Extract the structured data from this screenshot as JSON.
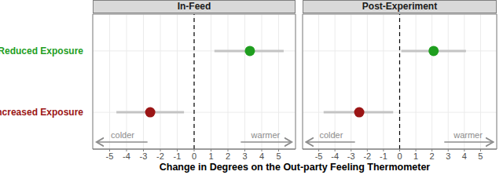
{
  "chart_data": [
    {
      "type": "scatter",
      "title": "In-Feed",
      "x_label": "Change in Degrees on the Out-party Feeling Thermometer",
      "categories": [
        "Reduced Exposure",
        "Increased Exposure"
      ],
      "values": [
        3.3,
        -2.6
      ],
      "ci_low": [
        1.2,
        -4.6
      ],
      "ci_high": [
        5.3,
        -0.6
      ],
      "colors": [
        "#1f9e1f",
        "#9b1515"
      ],
      "xlim": [
        -6,
        6
      ],
      "xticks": [
        -5,
        -4,
        -3,
        -2,
        -1,
        0,
        1,
        2,
        3,
        4,
        5
      ],
      "grid": true,
      "reference_lines": [
        {
          "x": 0,
          "line_style": "dashed"
        }
      ],
      "annotations": [
        "colder",
        "warmer"
      ]
    },
    {
      "type": "scatter",
      "title": "Post-Experiment",
      "categories": [
        "Reduced Exposure",
        "Increased Exposure"
      ],
      "values": [
        2.1,
        -2.5
      ],
      "ci_low": [
        0.1,
        -4.7
      ],
      "ci_high": [
        4.1,
        -0.4
      ],
      "colors": [
        "#1f9e1f",
        "#9b1515"
      ],
      "xlim": [
        -6,
        6
      ],
      "xticks": [
        -5,
        -4,
        -3,
        -2,
        -1,
        0,
        1,
        2,
        3,
        4,
        5
      ],
      "grid": true,
      "reference_lines": [
        {
          "x": 0,
          "line_style": "dashed"
        }
      ],
      "annotations": [
        "colder",
        "warmer"
      ],
      "tick_labels": "x"
    }
  ]
}
